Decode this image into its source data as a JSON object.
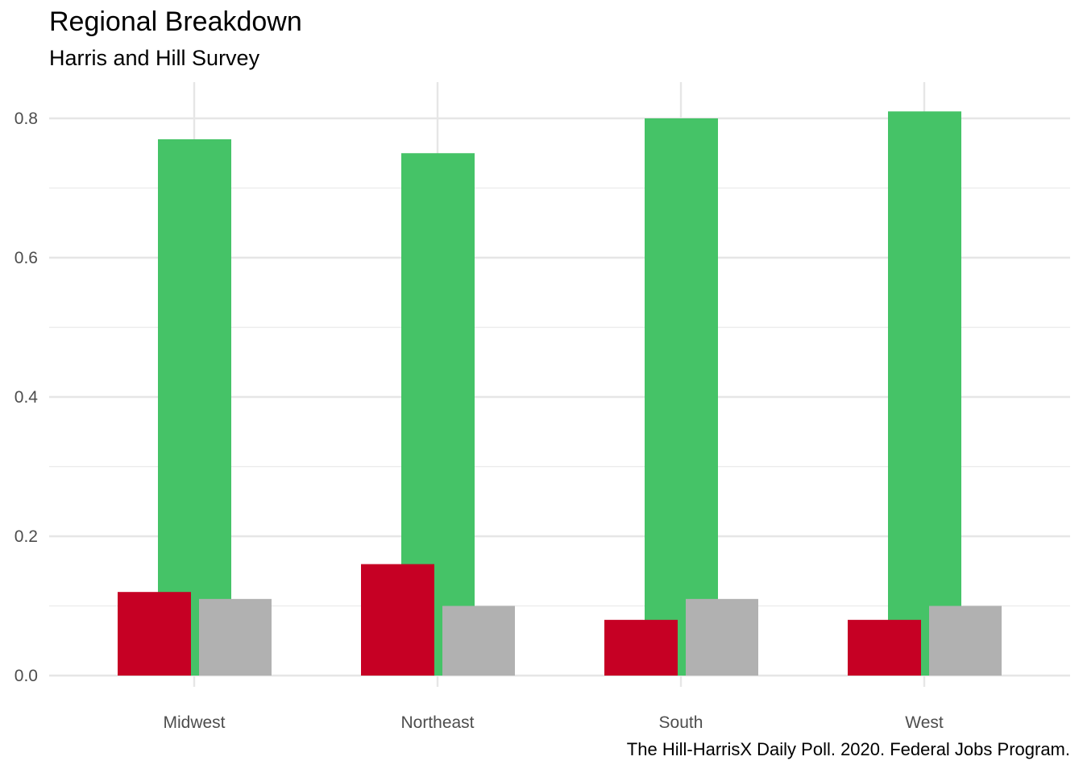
{
  "chart_data": {
    "type": "bar",
    "title": "Regional Breakdown",
    "subtitle": "Harris and Hill Survey",
    "caption": "The Hill-HarrisX Daily Poll. 2020. Federal Jobs Program.",
    "xlabel": "",
    "ylabel": "",
    "categories": [
      "Midwest",
      "Northeast",
      "South",
      "West"
    ],
    "ylim": [
      0,
      0.8
    ],
    "yticks": [
      0.0,
      0.2,
      0.4,
      0.6,
      0.8
    ],
    "ytick_labels": [
      "0.0",
      "0.2",
      "0.4",
      "0.6",
      "0.8"
    ],
    "grid": true,
    "legend": "none",
    "series": [
      {
        "values": [
          0.77,
          0.75,
          0.8,
          0.81
        ],
        "color": "#45c367"
      },
      {
        "values": [
          0.12,
          0.16,
          0.08,
          0.08
        ],
        "color": "#c60024"
      },
      {
        "values": [
          0.11,
          0.1,
          0.11,
          0.1
        ],
        "color": "#b1b1b1"
      }
    ]
  }
}
